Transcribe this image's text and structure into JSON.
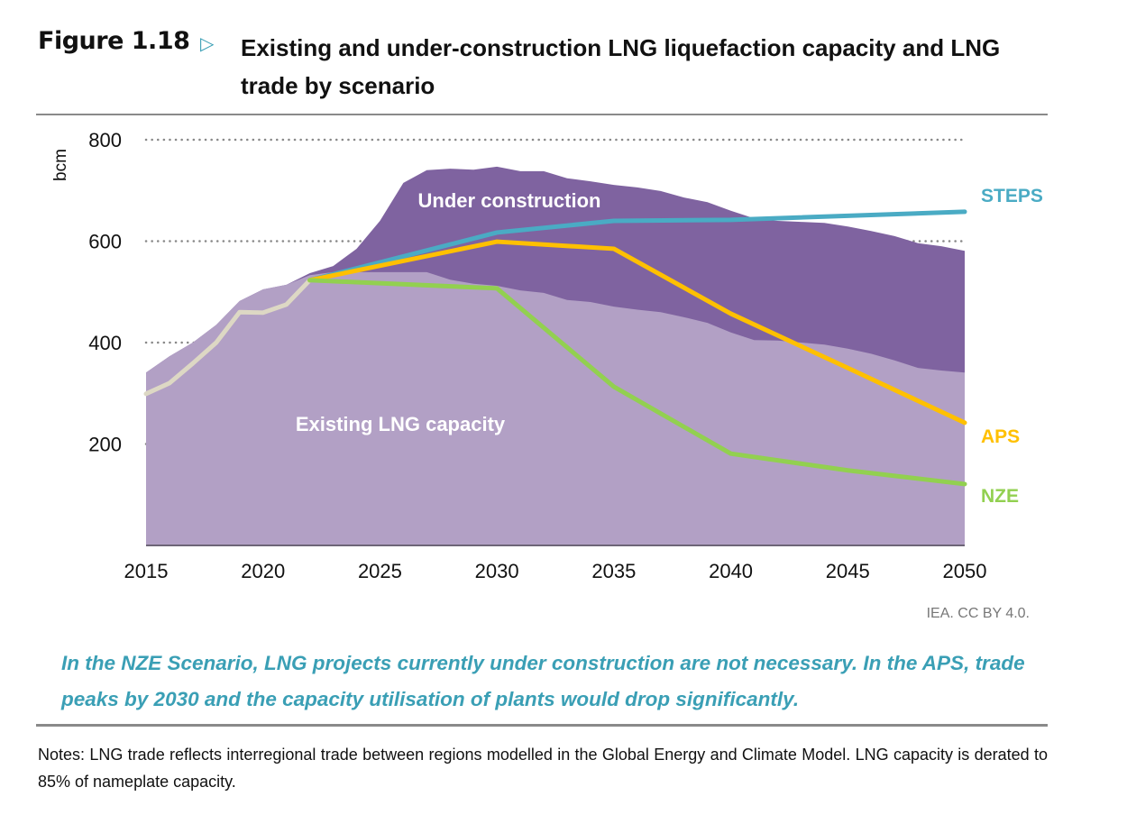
{
  "header": {
    "figure_label": "Figure 1.18",
    "arrow_icon": "triangle-right-icon",
    "title": "Existing and under-construction LNG liquefaction capacity and LNG trade by scenario"
  },
  "chart_data": {
    "type": "area",
    "ylabel": "bcm",
    "xlabel": "",
    "xlim": [
      2015,
      2050
    ],
    "ylim": [
      0,
      800
    ],
    "x_ticks": [
      2015,
      2020,
      2025,
      2030,
      2035,
      2040,
      2045,
      2050
    ],
    "y_ticks": [
      200,
      400,
      600,
      800
    ],
    "grid": "dotted horizontal",
    "areas": [
      {
        "name": "Existing LNG capacity",
        "color": "#b2a0c5",
        "points": [
          [
            2015,
            341
          ],
          [
            2016,
            373
          ],
          [
            2017,
            400
          ],
          [
            2018,
            435
          ],
          [
            2019,
            482
          ],
          [
            2020,
            505
          ],
          [
            2021,
            514
          ],
          [
            2022,
            533
          ],
          [
            2023,
            539
          ],
          [
            2024,
            539
          ],
          [
            2025,
            539
          ],
          [
            2026,
            539
          ],
          [
            2027,
            539
          ],
          [
            2028,
            524
          ],
          [
            2029,
            516
          ],
          [
            2030,
            512
          ],
          [
            2031,
            503
          ],
          [
            2032,
            498
          ],
          [
            2033,
            484
          ],
          [
            2034,
            480
          ],
          [
            2035,
            471
          ],
          [
            2036,
            465
          ],
          [
            2037,
            460
          ],
          [
            2038,
            450
          ],
          [
            2039,
            439
          ],
          [
            2040,
            420
          ],
          [
            2041,
            405
          ],
          [
            2042,
            404
          ],
          [
            2043,
            400
          ],
          [
            2044,
            396
          ],
          [
            2045,
            388
          ],
          [
            2046,
            378
          ],
          [
            2047,
            365
          ],
          [
            2048,
            350
          ],
          [
            2049,
            345
          ],
          [
            2050,
            341
          ]
        ]
      },
      {
        "name": "Under construction",
        "color": "#7f63a0",
        "points": [
          [
            2015,
            341
          ],
          [
            2016,
            373
          ],
          [
            2017,
            400
          ],
          [
            2018,
            435
          ],
          [
            2019,
            482
          ],
          [
            2020,
            505
          ],
          [
            2021,
            514
          ],
          [
            2022,
            537
          ],
          [
            2023,
            551
          ],
          [
            2024,
            585
          ],
          [
            2025,
            640
          ],
          [
            2026,
            715
          ],
          [
            2027,
            740
          ],
          [
            2028,
            743
          ],
          [
            2029,
            741
          ],
          [
            2030,
            747
          ],
          [
            2031,
            738
          ],
          [
            2032,
            738
          ],
          [
            2033,
            724
          ],
          [
            2034,
            718
          ],
          [
            2035,
            711
          ],
          [
            2036,
            706
          ],
          [
            2037,
            699
          ],
          [
            2038,
            686
          ],
          [
            2039,
            677
          ],
          [
            2040,
            660
          ],
          [
            2041,
            645
          ],
          [
            2042,
            640
          ],
          [
            2043,
            638
          ],
          [
            2044,
            636
          ],
          [
            2045,
            629
          ],
          [
            2046,
            620
          ],
          [
            2047,
            610
          ],
          [
            2048,
            596
          ],
          [
            2049,
            590
          ],
          [
            2050,
            581
          ]
        ]
      }
    ],
    "series": [
      {
        "name": "Historical trade",
        "label": "",
        "color": "#ddd8c4",
        "points": [
          [
            2015,
            299
          ],
          [
            2016,
            320
          ],
          [
            2017,
            359
          ],
          [
            2018,
            400
          ],
          [
            2019,
            460
          ],
          [
            2020,
            459
          ],
          [
            2021,
            475
          ],
          [
            2022,
            523
          ]
        ]
      },
      {
        "name": "STEPS",
        "label": "STEPS",
        "color": "#4aabc4",
        "points": [
          [
            2022,
            523
          ],
          [
            2030,
            617
          ],
          [
            2035,
            640
          ],
          [
            2040,
            642
          ],
          [
            2050,
            658
          ]
        ]
      },
      {
        "name": "APS",
        "label": "APS",
        "color": "#ffc000",
        "points": [
          [
            2022,
            523
          ],
          [
            2030,
            599
          ],
          [
            2035,
            585
          ],
          [
            2040,
            457
          ],
          [
            2045,
            350
          ],
          [
            2050,
            242
          ]
        ]
      },
      {
        "name": "NZE",
        "label": "NZE",
        "color": "#92d050",
        "points": [
          [
            2022,
            523
          ],
          [
            2030,
            507
          ],
          [
            2035,
            313
          ],
          [
            2040,
            181
          ],
          [
            2045,
            148
          ],
          [
            2050,
            121
          ]
        ]
      }
    ]
  },
  "source": "IEA. CC BY 4.0.",
  "caption": "In the NZE Scenario, LNG projects currently under construction are not necessary. In the APS, trade peaks by 2030 and the capacity utilisation of plants would drop significantly.",
  "notes": "Notes: LNG trade reflects interregional trade between regions modelled in the Global Energy and Climate Model. LNG capacity is derated to 85% of nameplate capacity."
}
